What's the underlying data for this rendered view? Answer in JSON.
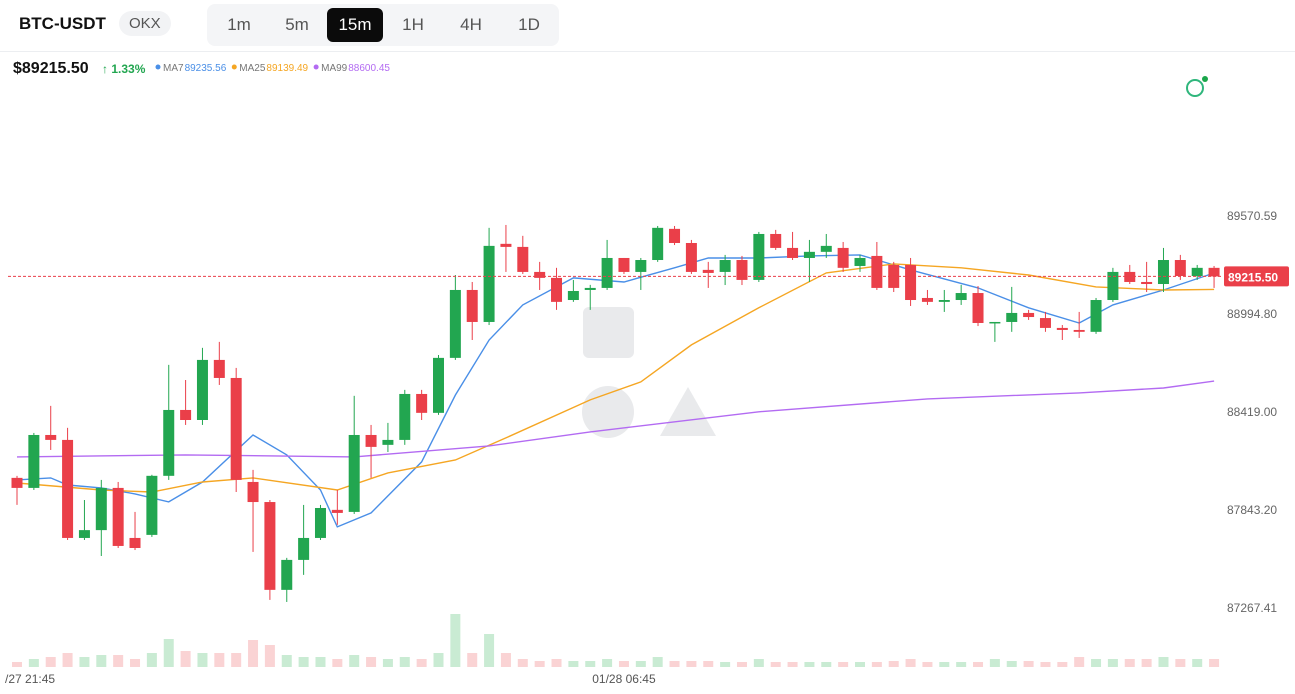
{
  "header": {
    "symbol": "BTC-USDT",
    "exchange": "OKX",
    "timeframes": [
      "1m",
      "5m",
      "15m",
      "1H",
      "4H",
      "1D"
    ],
    "active_timeframe": "15m"
  },
  "chart_data": {
    "type": "candlestick",
    "price_label": "$89215.50",
    "change_label": "↑ 1.33%",
    "last_price": {
      "value": 89215.5,
      "label": "89215.50"
    },
    "ylim": [
      86920.78,
      90487.15
    ],
    "yticks": [
      89570.59,
      {
        "value": 88994.8,
        "label": "88994.80"
      },
      {
        "value": 88419,
        "label": "88419.00"
      },
      {
        "value": 87843.2,
        "label": "87843.20"
      },
      87267.41
    ],
    "xticks": [
      {
        "value": 0,
        "label": "/27 21:45"
      },
      {
        "value": 36,
        "label": "01/28 06:45"
      }
    ],
    "up_color": "#22a650",
    "down_color": "#ea3f49",
    "open": [
      88032,
      87973,
      88284,
      88255,
      87679,
      87725,
      87973,
      87679,
      87697,
      88044,
      88431,
      88372,
      88725,
      88619,
      88008,
      87890,
      87374,
      87550,
      87679,
      87844,
      87832,
      88284,
      88226,
      88255,
      88525,
      88414,
      88737,
      89136,
      88948,
      89407,
      89389,
      89242,
      89207,
      89077,
      89136,
      89148,
      89324,
      89242,
      89312,
      89495,
      89412,
      89254,
      89242,
      89312,
      89195,
      89465,
      89383,
      89324,
      89360,
      89383,
      89277,
      89336,
      89283,
      89283,
      89089,
      89066,
      89077,
      89118,
      88942,
      88948,
      89001,
      88971,
      88913,
      88901,
      88890,
      89077,
      89242,
      89183,
      89171,
      89312,
      89218,
      89266
    ],
    "high": [
      88044,
      88296,
      88455,
      88326,
      87902,
      88020,
      88008,
      87832,
      88050,
      88696,
      88607,
      88796,
      88831,
      88678,
      88079,
      87902,
      87562,
      87873,
      87873,
      87961,
      88514,
      88343,
      88355,
      88549,
      88549,
      88754,
      89224,
      89183,
      89501,
      89518,
      89454,
      89301,
      89266,
      89195,
      89166,
      89430,
      89324,
      89324,
      89512,
      89512,
      89430,
      89301,
      89342,
      89336,
      89477,
      89489,
      89477,
      89430,
      89465,
      89418,
      89342,
      89418,
      89301,
      89324,
      89136,
      89136,
      89166,
      89159,
      88948,
      89154,
      89019,
      89007,
      88930,
      89007,
      89089,
      89266,
      89283,
      89301,
      89383,
      89342,
      89283,
      89277
    ],
    "low": [
      87873,
      87961,
      88196,
      87667,
      87667,
      87573,
      87620,
      87608,
      87685,
      88020,
      88343,
      88343,
      88578,
      87949,
      87597,
      87315,
      87303,
      87462,
      87667,
      87756,
      87820,
      88032,
      88184,
      88226,
      88372,
      88402,
      88725,
      88842,
      88930,
      89242,
      89230,
      89136,
      89019,
      89066,
      89019,
      89136,
      89230,
      89136,
      89301,
      89400,
      89230,
      89148,
      89165,
      89165,
      89183,
      89371,
      89312,
      89183,
      89324,
      89242,
      89242,
      89136,
      89124,
      89042,
      89048,
      89007,
      89048,
      88924,
      88831,
      88890,
      88960,
      88890,
      88842,
      88854,
      88878,
      89066,
      89171,
      89124,
      89124,
      89195,
      89195,
      89148
    ],
    "close": [
      87973,
      88284,
      88255,
      87679,
      87725,
      87973,
      87632,
      87620,
      88044,
      88431,
      88372,
      88725,
      88619,
      88020,
      87890,
      87374,
      87550,
      87679,
      87855,
      87826,
      88284,
      88214,
      88255,
      88525,
      88414,
      88737,
      89136,
      88948,
      89395,
      89389,
      89242,
      89207,
      89066,
      89130,
      89148,
      89324,
      89242,
      89312,
      89501,
      89412,
      89242,
      89236,
      89312,
      89195,
      89465,
      89383,
      89324,
      89360,
      89395,
      89266,
      89324,
      89148,
      89148,
      89077,
      89066,
      89077,
      89118,
      88942,
      88948,
      89001,
      88977,
      88913,
      88901,
      88890,
      89077,
      89242,
      89183,
      89171,
      89312,
      89218,
      89266,
      89215.5
    ],
    "volume": [
      5,
      8,
      10,
      14,
      10,
      12,
      12,
      8,
      14,
      28,
      16,
      14,
      14,
      14,
      27,
      22,
      12,
      10,
      10,
      8,
      12,
      10,
      8,
      10,
      8,
      14,
      53,
      14,
      33,
      14,
      8,
      6,
      8,
      6,
      6,
      8,
      6,
      6,
      10,
      6,
      6,
      6,
      5,
      5,
      8,
      5,
      5,
      5,
      5,
      5,
      5,
      5,
      6,
      8,
      5,
      5,
      5,
      5,
      8,
      6,
      6,
      5,
      5,
      10,
      8,
      8,
      8,
      8,
      10,
      8,
      8,
      8
    ],
    "ma": [
      {
        "name": "MA7",
        "color": "#4a8fe7",
        "value_label": "89235.56",
        "x": [
          0,
          2,
          3,
          5,
          7,
          9,
          11,
          14,
          16,
          18,
          19,
          21,
          24,
          26,
          28,
          30,
          33,
          36,
          39,
          41,
          44,
          47,
          50,
          53,
          57,
          60,
          63,
          65,
          68,
          71
        ],
        "values": [
          88020,
          88032,
          87990,
          87973,
          87938,
          87891,
          88008,
          88284,
          88167,
          87961,
          87744,
          87826,
          88126,
          88519,
          88842,
          89048,
          89207,
          89183,
          89266,
          89324,
          89324,
          89336,
          89342,
          89254,
          89148,
          89031,
          88942,
          89048,
          89136,
          89235.56
        ]
      },
      {
        "name": "MA25",
        "color": "#f5a623",
        "value_label": "89139.49",
        "x": [
          0,
          5,
          8,
          11,
          14,
          19,
          22,
          26,
          29,
          34,
          37,
          40,
          44,
          48,
          52,
          56,
          60,
          64,
          68,
          71
        ],
        "values": [
          88002,
          87961,
          87949,
          88008,
          88032,
          87961,
          88061,
          88137,
          88267,
          88490,
          88596,
          88813,
          89031,
          89236,
          89289,
          89266,
          89224,
          89154,
          89136,
          89139.49
        ]
      },
      {
        "name": "MA99",
        "color": "#b36bf2",
        "value_label": "88600.45",
        "x": [
          0,
          10,
          20,
          28,
          34,
          44,
          54,
          63,
          68,
          71
        ],
        "values": [
          88155,
          88167,
          88155,
          88220,
          88302,
          88420,
          88496,
          88531,
          88560,
          88600.45
        ]
      }
    ]
  }
}
